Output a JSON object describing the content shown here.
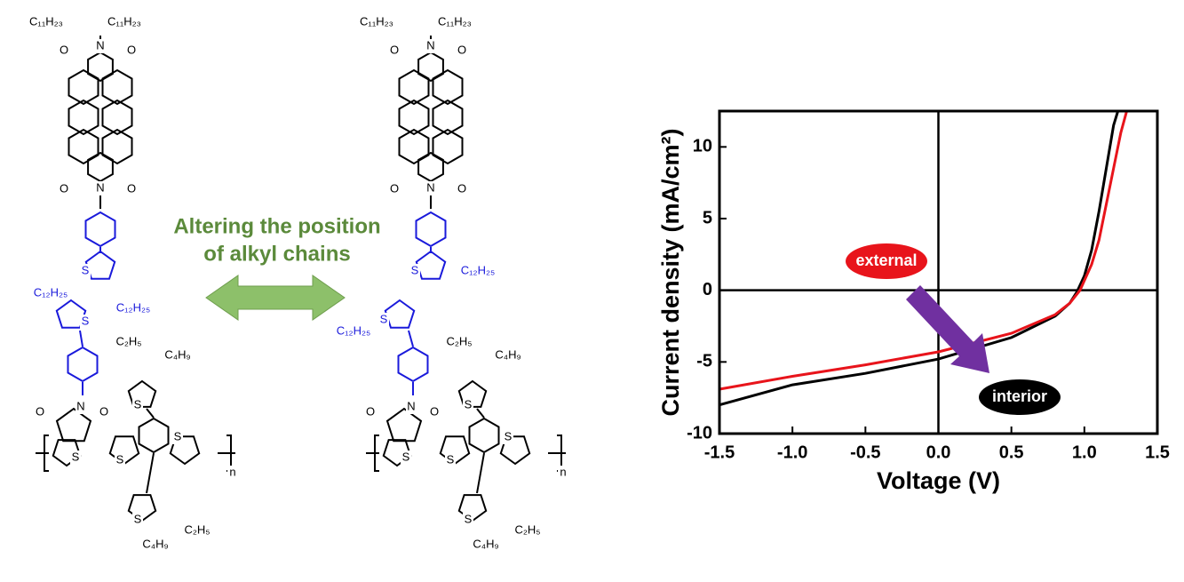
{
  "diagram": {
    "caption": [
      "Altering the position",
      "of alkyl chains"
    ],
    "molecules": [
      {
        "labels": [
          "C₁₁H₂₃",
          "C₁₁H₂₃",
          "O",
          "N",
          "O",
          "O",
          "N",
          "O",
          "S",
          "C₁₂H₂₅",
          "C₁₂H₂₅",
          "S",
          "O",
          "N",
          "O",
          "C₂H₅",
          "C₄H₉",
          "S",
          "S",
          "S",
          "S",
          "n",
          "S",
          "C₂H₅",
          "C₄H₉"
        ]
      },
      {
        "labels": [
          "C₁₁H₂₃",
          "C₁₁H₂₃",
          "O",
          "N",
          "O",
          "O",
          "N",
          "O",
          "S",
          "C₁₂H₂₅",
          "C₁₂H₂₅",
          "S",
          "O",
          "N",
          "O",
          "C₂H₅",
          "C₄H₉",
          "S",
          "S",
          "S",
          "S",
          "n",
          "S",
          "C₂H₅",
          "C₄H₉"
        ]
      }
    ]
  },
  "chart_data": {
    "type": "line",
    "x_label": "Voltage (V)",
    "y_label": "Current density (mA/cm²)",
    "xlim": [
      -1.5,
      1.5
    ],
    "ylim": [
      -10,
      12.5
    ],
    "xticks": [
      -1.5,
      {
        "value": -1,
        "label": "-1.0"
      },
      -0.5,
      {
        "value": 0,
        "label": "0.0"
      },
      0.5,
      {
        "value": 1,
        "label": "1.0"
      },
      1.5
    ],
    "yticks": [
      -10,
      -5,
      0,
      5,
      10
    ],
    "series": [
      {
        "name": "external",
        "color": "#e8141b",
        "x": [
          -1.5,
          -1.0,
          -0.5,
          0,
          0.5,
          0.8,
          0.9,
          0.97,
          1.05,
          1.1,
          1.15,
          1.2,
          1.25,
          1.29
        ],
        "values": [
          -6.9,
          -6.0,
          -5.2,
          -4.3,
          -3.0,
          -1.7,
          -0.9,
          0,
          1.8,
          3.5,
          6.0,
          8.5,
          11,
          12.5
        ]
      },
      {
        "name": "interior",
        "color": "#000000",
        "x": [
          -1.5,
          -1.0,
          -0.5,
          0,
          0.5,
          0.8,
          0.9,
          0.95,
          1.0,
          1.05,
          1.1,
          1.15,
          1.2,
          1.23
        ],
        "values": [
          -8.0,
          -6.6,
          -5.8,
          -4.8,
          -3.3,
          -1.8,
          -0.9,
          -0.1,
          1.0,
          2.8,
          5.5,
          8.5,
          11.5,
          12.5
        ]
      }
    ]
  }
}
